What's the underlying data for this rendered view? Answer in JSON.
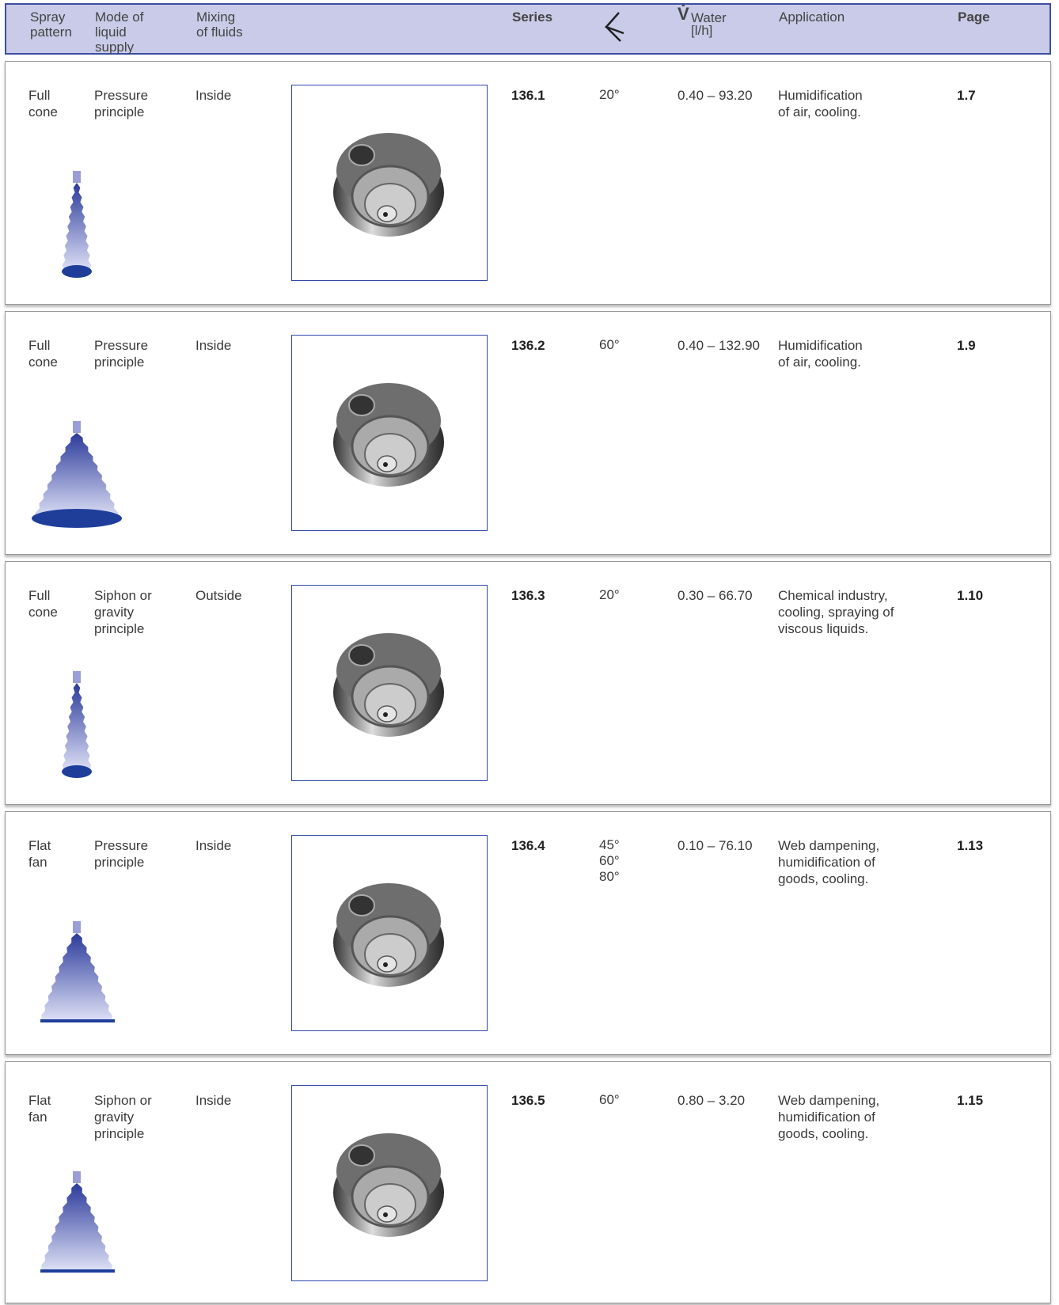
{
  "header": {
    "spray_pattern": "Spray\npattern",
    "mode": "Mode of\nliquid\nsupply",
    "mixing": "Mixing\nof fluids",
    "series": "Series",
    "water_symbol": "V̇",
    "water": "Water\n[l/h]",
    "application": "Application",
    "page": "Page"
  },
  "rows": [
    {
      "pattern": "Full\ncone",
      "mode": "Pressure\nprinciple",
      "mixing": "Inside",
      "series": "136.1",
      "angles": [
        "20°"
      ],
      "water": "0.40 – 93.20",
      "application": "Humidification\nof air, cooling.",
      "page": "1.7"
    },
    {
      "pattern": "Full\ncone",
      "mode": "Pressure\nprinciple",
      "mixing": "Inside",
      "series": "136.2",
      "angles": [
        "60°"
      ],
      "water": "0.40 – 132.90",
      "application": "Humidification\nof air, cooling.",
      "page": "1.9"
    },
    {
      "pattern": "Full\ncone",
      "mode": "Siphon or\ngravity\nprinciple",
      "mixing": "Outside",
      "series": "136.3",
      "angles": [
        "20°"
      ],
      "water": "0.30 – 66.70",
      "application": "Chemical industry,\ncooling, spraying of\nviscous liquids.",
      "page": "1.10"
    },
    {
      "pattern": "Flat\nfan",
      "mode": "Pressure\nprinciple",
      "mixing": "Inside",
      "series": "136.4",
      "angles": [
        "45°",
        "60°",
        "80°"
      ],
      "water": "0.10 – 76.10",
      "application": "Web dampening,\nhumidification of\ngoods, cooling.",
      "page": "1.13"
    },
    {
      "pattern": "Flat\nfan",
      "mode": "Siphon or\ngravity\nprinciple",
      "mixing": "Inside",
      "series": "136.5",
      "angles": [
        "60°"
      ],
      "water": "0.80 – 3.20",
      "application": "Web dampening,\nhumidification of\ngoods, cooling.",
      "page": "1.15"
    }
  ]
}
